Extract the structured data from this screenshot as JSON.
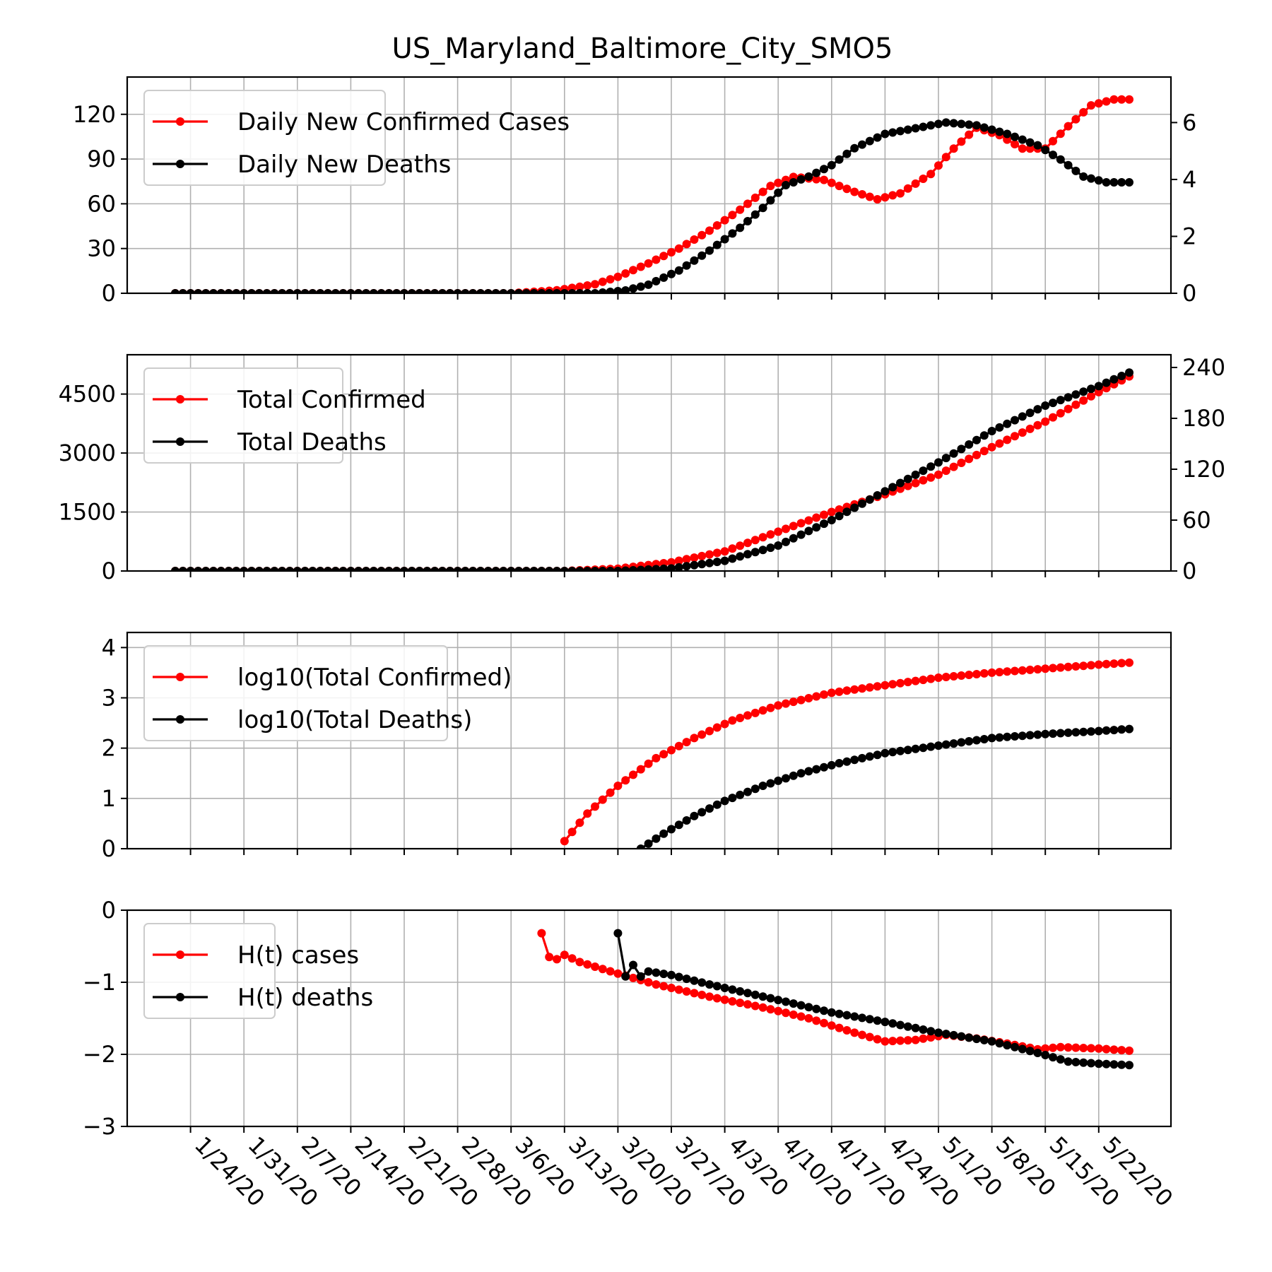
{
  "chart_data": {
    "title": "US_Maryland_Baltimore_City_SMO5",
    "x_tick_labels": [
      "1/24/20",
      "1/31/20",
      "2/7/20",
      "2/14/20",
      "2/21/20",
      "2/28/20",
      "3/6/20",
      "3/13/20",
      "3/20/20",
      "3/27/20",
      "4/3/20",
      "4/10/20",
      "4/17/20",
      "4/24/20",
      "5/1/20",
      "5/8/20",
      "5/15/20",
      "5/22/20"
    ],
    "x_start_date": "1/22/20",
    "x_end_date": "5/26/20",
    "colors": {
      "cases": "#ff0000",
      "deaths": "#000000",
      "grid": "#b0b0b0"
    },
    "panels": [
      {
        "type": "line",
        "yticks_left": [
          0,
          30,
          60,
          90,
          120
        ],
        "ylim_left": [
          0,
          145
        ],
        "yticks_right": [
          0,
          2,
          4,
          6
        ],
        "ylim_right": [
          0,
          7.6
        ],
        "legend": [
          "Daily New Confirmed Cases",
          "Daily New Deaths"
        ],
        "legend_position": "upper-left",
        "series": [
          {
            "name": "Daily New Confirmed Cases",
            "axis": "left",
            "start_date": "1/22/20",
            "end_date": "5/26/20",
            "points": [
              [
                "1/22/20",
                0
              ],
              [
                "3/6/20",
                0
              ],
              [
                "3/12/20",
                2
              ],
              [
                "3/17/20",
                6
              ],
              [
                "3/20/20",
                11
              ],
              [
                "3/24/20",
                20
              ],
              [
                "3/28/20",
                30
              ],
              [
                "4/1/20",
                42
              ],
              [
                "4/5/20",
                56
              ],
              [
                "4/9/20",
                72
              ],
              [
                "4/12/20",
                78
              ],
              [
                "4/16/20",
                76
              ],
              [
                "4/20/20",
                68
              ],
              [
                "4/23/20",
                63
              ],
              [
                "4/26/20",
                67
              ],
              [
                "4/30/20",
                80
              ],
              [
                "5/3/20",
                97
              ],
              [
                "5/6/20",
                111
              ],
              [
                "5/9/20",
                106
              ],
              [
                "5/12/20",
                97
              ],
              [
                "5/15/20",
                97
              ],
              [
                "5/18/20",
                112
              ],
              [
                "5/21/20",
                126
              ],
              [
                "5/24/20",
                130
              ],
              [
                "5/26/20",
                130
              ]
            ]
          },
          {
            "name": "Daily New Deaths",
            "axis": "right",
            "start_date": "1/22/20",
            "end_date": "5/26/20",
            "points": [
              [
                "1/22/20",
                0
              ],
              [
                "3/17/20",
                0
              ],
              [
                "3/21/20",
                0.1
              ],
              [
                "3/24/20",
                0.3
              ],
              [
                "3/28/20",
                0.8
              ],
              [
                "4/1/20",
                1.5
              ],
              [
                "4/5/20",
                2.3
              ],
              [
                "4/8/20",
                3.0
              ],
              [
                "4/11/20",
                3.8
              ],
              [
                "4/14/20",
                4.1
              ],
              [
                "4/17/20",
                4.5
              ],
              [
                "4/20/20",
                5.1
              ],
              [
                "4/24/20",
                5.6
              ],
              [
                "4/28/20",
                5.8
              ],
              [
                "5/2/20",
                6.0
              ],
              [
                "5/6/20",
                5.9
              ],
              [
                "5/10/20",
                5.6
              ],
              [
                "5/14/20",
                5.2
              ],
              [
                "5/17/20",
                4.7
              ],
              [
                "5/20/20",
                4.1
              ],
              [
                "5/23/20",
                3.9
              ],
              [
                "5/26/20",
                3.9
              ]
            ]
          }
        ]
      },
      {
        "type": "line",
        "yticks_left": [
          0,
          1500,
          3000,
          4500
        ],
        "ylim_left": [
          0,
          5500
        ],
        "yticks_right": [
          0,
          60,
          120,
          180,
          240
        ],
        "ylim_right": [
          0,
          255
        ],
        "legend": [
          "Total Confirmed",
          "Total Deaths"
        ],
        "legend_position": "upper-left",
        "series": [
          {
            "name": "Total Confirmed",
            "axis": "left",
            "start_date": "1/22/20",
            "end_date": "5/26/20",
            "points": [
              [
                "1/22/20",
                0
              ],
              [
                "3/13/20",
                0
              ],
              [
                "3/20/20",
                60
              ],
              [
                "3/27/20",
                220
              ],
              [
                "4/3/20",
                500
              ],
              [
                "4/10/20",
                1000
              ],
              [
                "4/17/20",
                1500
              ],
              [
                "4/24/20",
                1950
              ],
              [
                "5/1/20",
                2450
              ],
              [
                "5/8/20",
                3150
              ],
              [
                "5/15/20",
                3800
              ],
              [
                "5/22/20",
                4550
              ],
              [
                "5/26/20",
                4950
              ]
            ]
          },
          {
            "name": "Total Deaths",
            "axis": "right",
            "start_date": "1/22/20",
            "end_date": "5/26/20",
            "points": [
              [
                "1/22/20",
                0
              ],
              [
                "3/20/20",
                0
              ],
              [
                "3/27/20",
                3
              ],
              [
                "4/3/20",
                12
              ],
              [
                "4/10/20",
                30
              ],
              [
                "4/17/20",
                60
              ],
              [
                "4/24/20",
                94
              ],
              [
                "5/1/20",
                128
              ],
              [
                "5/8/20",
                165
              ],
              [
                "5/15/20",
                195
              ],
              [
                "5/22/20",
                218
              ],
              [
                "5/26/20",
                234
              ]
            ]
          }
        ]
      },
      {
        "type": "line",
        "yticks_left": [
          0,
          1,
          2,
          3,
          4
        ],
        "ylim_left": [
          0,
          4.3
        ],
        "legend": [
          "log10(Total Confirmed)",
          "log10(Total Deaths)"
        ],
        "legend_position": "upper-left",
        "series": [
          {
            "name": "log10(Total Confirmed)",
            "axis": "left",
            "start_date": "3/13/20",
            "end_date": "5/26/20",
            "points": [
              [
                "3/13/20",
                0.15
              ],
              [
                "3/16/20",
                0.7
              ],
              [
                "3/20/20",
                1.25
              ],
              [
                "3/25/20",
                1.8
              ],
              [
                "3/30/20",
                2.2
              ],
              [
                "4/4/20",
                2.55
              ],
              [
                "4/10/20",
                2.85
              ],
              [
                "4/17/20",
                3.1
              ],
              [
                "4/24/20",
                3.25
              ],
              [
                "5/1/20",
                3.4
              ],
              [
                "5/8/20",
                3.5
              ],
              [
                "5/15/20",
                3.58
              ],
              [
                "5/22/20",
                3.66
              ],
              [
                "5/26/20",
                3.7
              ]
            ]
          },
          {
            "name": "log10(Total Deaths)",
            "axis": "left",
            "start_date": "3/23/20",
            "end_date": "5/26/20",
            "points": [
              [
                "3/23/20",
                0
              ],
              [
                "3/26/20",
                0.3
              ],
              [
                "3/30/20",
                0.65
              ],
              [
                "4/3/20",
                0.95
              ],
              [
                "4/8/20",
                1.25
              ],
              [
                "4/13/20",
                1.5
              ],
              [
                "4/18/20",
                1.7
              ],
              [
                "4/24/20",
                1.9
              ],
              [
                "5/1/20",
                2.05
              ],
              [
                "5/8/20",
                2.2
              ],
              [
                "5/15/20",
                2.28
              ],
              [
                "5/22/20",
                2.34
              ],
              [
                "5/26/20",
                2.38
              ]
            ]
          }
        ]
      },
      {
        "type": "line",
        "yticks_left": [
          0,
          -1,
          -2,
          -3
        ],
        "ylim_left": [
          -3,
          0
        ],
        "legend": [
          "H(t) cases",
          "H(t) deaths"
        ],
        "legend_position": "upper-left",
        "series": [
          {
            "name": "H(t) cases",
            "axis": "left",
            "start_date": "3/10/20",
            "end_date": "5/26/20",
            "points": [
              [
                "3/10/20",
                -0.32
              ],
              [
                "3/11/20",
                -0.65
              ],
              [
                "3/12/20",
                -0.68
              ],
              [
                "3/13/20",
                -0.62
              ],
              [
                "3/15/20",
                -0.72
              ],
              [
                "3/20/20",
                -0.88
              ],
              [
                "3/25/20",
                -1.03
              ],
              [
                "4/1/20",
                -1.2
              ],
              [
                "4/8/20",
                -1.35
              ],
              [
                "4/14/20",
                -1.5
              ],
              [
                "4/20/20",
                -1.7
              ],
              [
                "4/24/20",
                -1.82
              ],
              [
                "4/28/20",
                -1.8
              ],
              [
                "5/2/20",
                -1.73
              ],
              [
                "5/6/20",
                -1.78
              ],
              [
                "5/10/20",
                -1.85
              ],
              [
                "5/14/20",
                -1.93
              ],
              [
                "5/17/20",
                -1.9
              ],
              [
                "5/22/20",
                -1.92
              ],
              [
                "5/26/20",
                -1.95
              ]
            ]
          },
          {
            "name": "H(t) deaths",
            "axis": "left",
            "start_date": "3/20/20",
            "end_date": "5/26/20",
            "points": [
              [
                "3/20/20",
                -0.32
              ],
              [
                "3/21/20",
                -0.92
              ],
              [
                "3/22/20",
                -0.76
              ],
              [
                "3/23/20",
                -0.92
              ],
              [
                "3/24/20",
                -0.85
              ],
              [
                "3/27/20",
                -0.9
              ],
              [
                "4/1/20",
                -1.03
              ],
              [
                "4/6/20",
                -1.15
              ],
              [
                "4/11/20",
                -1.27
              ],
              [
                "4/17/20",
                -1.42
              ],
              [
                "4/24/20",
                -1.55
              ],
              [
                "5/1/20",
                -1.7
              ],
              [
                "5/8/20",
                -1.82
              ],
              [
                "5/14/20",
                -1.98
              ],
              [
                "5/18/20",
                -2.1
              ],
              [
                "5/22/20",
                -2.13
              ],
              [
                "5/26/20",
                -2.15
              ]
            ]
          }
        ]
      }
    ]
  }
}
